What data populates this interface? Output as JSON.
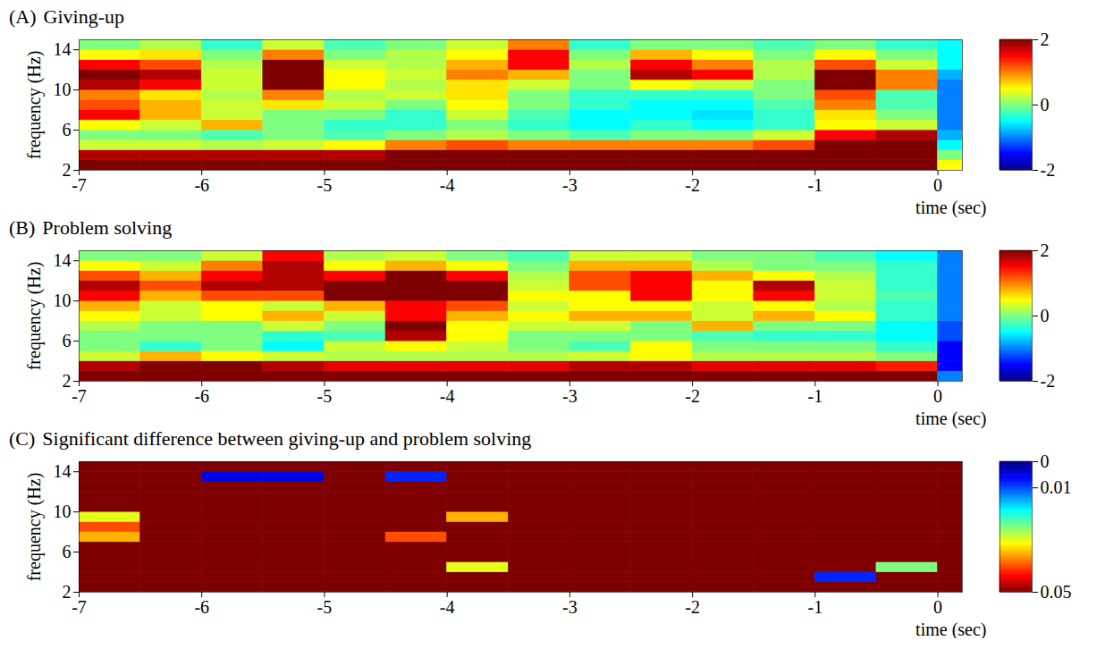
{
  "chart_data": [
    {
      "type": "heatmap",
      "label": "(A)",
      "title": "Giving-up",
      "x_label": "time (sec)",
      "y_label": "frequency (Hz)",
      "xlim": [
        -7,
        0.2
      ],
      "xticks": [
        -7,
        -6,
        -5,
        -4,
        -3,
        -2,
        -1,
        0
      ],
      "ylim": [
        2,
        15
      ],
      "yticks": [
        2,
        6,
        10,
        14
      ],
      "time_bins": [
        -7,
        -6.5,
        -6,
        -5.5,
        -5,
        -4.5,
        -4,
        -3.5,
        -3,
        -2.5,
        -2,
        -1.5,
        -1,
        -0.5,
        0,
        0.2
      ],
      "frequency_bins": [
        2,
        3,
        4,
        5,
        6,
        7,
        8,
        9,
        10,
        11,
        12,
        13,
        14,
        15
      ],
      "cells": [
        [
          2,
          2,
          2,
          2,
          2,
          2,
          2,
          2,
          2,
          2,
          2,
          2,
          2,
          2,
          0.5
        ],
        [
          1.8,
          1.8,
          1.8,
          1.8,
          1.8,
          2,
          2,
          2,
          2,
          2,
          2,
          2,
          2,
          2,
          0
        ],
        [
          0.3,
          0.3,
          0.2,
          0.3,
          0.5,
          1,
          1.2,
          1,
          1,
          1,
          1,
          1.2,
          2,
          2,
          -0.5
        ],
        [
          0,
          0,
          -0.2,
          0,
          -0.2,
          0,
          0.2,
          0,
          -0.2,
          0,
          0,
          0.3,
          1.5,
          1.8,
          -0.8
        ],
        [
          0.5,
          0.3,
          0.8,
          0,
          -0.3,
          -0.3,
          0,
          -0.3,
          -0.5,
          -0.3,
          -0.5,
          -0.3,
          0.5,
          0.3,
          -1
        ],
        [
          1.5,
          0.8,
          0.3,
          0,
          0,
          -0.3,
          0.3,
          -0.2,
          -0.5,
          -0.5,
          -0.6,
          -0.3,
          0.6,
          0,
          -1
        ],
        [
          1.2,
          0.8,
          0.3,
          0.6,
          0.3,
          0,
          0.5,
          0,
          -0.3,
          -0.5,
          -0.5,
          -0.2,
          1,
          -0.2,
          -1
        ],
        [
          1,
          0.6,
          0.2,
          1,
          0.2,
          0.3,
          0.6,
          0,
          -0.3,
          -0.3,
          -0.3,
          0,
          1.2,
          -0.2,
          -1
        ],
        [
          1.8,
          1.5,
          0.3,
          2,
          0.5,
          0.2,
          0.6,
          0.3,
          0,
          0.5,
          0.3,
          0,
          2,
          1,
          -1
        ],
        [
          2,
          1.8,
          0.3,
          2,
          0.5,
          0.3,
          1,
          0.8,
          0,
          1.8,
          1.5,
          0.2,
          2,
          1,
          -0.8
        ],
        [
          1.5,
          1.2,
          0.2,
          2,
          0.3,
          0.2,
          0.8,
          1.5,
          0.2,
          1.5,
          1,
          0.2,
          1.2,
          0.3,
          -0.5
        ],
        [
          0.5,
          0.6,
          0,
          1,
          0,
          0.2,
          0.5,
          1.5,
          0,
          0.8,
          0.5,
          0,
          0.5,
          0,
          -0.5
        ],
        [
          0,
          0.2,
          -0.3,
          0.3,
          -0.2,
          0,
          0.3,
          1,
          -0.3,
          0,
          0,
          -0.2,
          0,
          -0.3,
          -0.5
        ]
      ],
      "colorbar": {
        "range": [
          -2,
          2
        ],
        "ticks": [
          -2,
          0,
          2
        ]
      }
    },
    {
      "type": "heatmap",
      "label": "(B)",
      "title": "Problem solving",
      "x_label": "time (sec)",
      "y_label": "frequency (Hz)",
      "xlim": [
        -7,
        0.2
      ],
      "xticks": [
        -7,
        -6,
        -5,
        -4,
        -3,
        -2,
        -1,
        0
      ],
      "ylim": [
        2,
        15
      ],
      "yticks": [
        2,
        6,
        10,
        14
      ],
      "time_bins": [
        -7,
        -6.5,
        -6,
        -5.5,
        -5,
        -4.5,
        -4,
        -3.5,
        -3,
        -2.5,
        -2,
        -1.5,
        -1,
        -0.5,
        0,
        0.2
      ],
      "frequency_bins": [
        2,
        3,
        4,
        5,
        6,
        7,
        8,
        9,
        10,
        11,
        12,
        13,
        14,
        15
      ],
      "cells": [
        [
          2,
          2,
          2,
          2,
          2,
          2,
          2,
          2,
          2,
          2,
          2,
          2,
          2,
          2,
          -1
        ],
        [
          1.8,
          2,
          2,
          1.8,
          1.6,
          1.6,
          1.6,
          1.6,
          1.8,
          1.8,
          1.6,
          1.6,
          1.6,
          1.4,
          -1.5
        ],
        [
          0.3,
          0.8,
          0.5,
          0.3,
          0.2,
          0.2,
          0.2,
          0.2,
          0.3,
          0.5,
          0.2,
          0.2,
          0.2,
          0,
          -1.5
        ],
        [
          0,
          -0.3,
          0,
          -0.5,
          0.3,
          0.5,
          0.3,
          0,
          -0.2,
          0.5,
          0,
          0,
          0,
          -0.3,
          -1.5
        ],
        [
          0,
          0,
          0,
          -0.3,
          -0.2,
          1.8,
          0.5,
          0,
          0,
          0,
          -0.2,
          -0.3,
          -0.3,
          -0.5,
          -1.2
        ],
        [
          0.2,
          0,
          0,
          0.3,
          0,
          2,
          0.5,
          0.3,
          0.3,
          0,
          0.8,
          0,
          0,
          -0.5,
          -1.2
        ],
        [
          0.5,
          0.3,
          0.5,
          0.8,
          0.3,
          1.5,
          0.8,
          0.5,
          0.8,
          0.8,
          0.3,
          0.8,
          0.5,
          -0.3,
          -1
        ],
        [
          0.8,
          0.3,
          0.5,
          0.3,
          0.8,
          1.5,
          1.2,
          0.3,
          0.5,
          0.5,
          0.3,
          0.5,
          0.2,
          -0.3,
          -1
        ],
        [
          1.5,
          0.8,
          1.2,
          1.2,
          2,
          2,
          2,
          0.5,
          0.5,
          1.5,
          0.5,
          1.5,
          0.3,
          -0.2,
          -1
        ],
        [
          1.8,
          1.2,
          1.8,
          1.8,
          2,
          2,
          2,
          0.3,
          1.2,
          1.5,
          0.5,
          1.8,
          0.3,
          -0.3,
          -1
        ],
        [
          1.2,
          0.8,
          1.5,
          1.8,
          1.5,
          2,
          1.5,
          0.2,
          1.2,
          1.5,
          0.8,
          0.5,
          0.2,
          -0.3,
          -1
        ],
        [
          0.5,
          0.3,
          1,
          1.8,
          0.5,
          0.8,
          0.5,
          0,
          0.8,
          0.8,
          0.2,
          0,
          0,
          -0.3,
          -1
        ],
        [
          0,
          0,
          0.3,
          1.5,
          0.2,
          0.3,
          0,
          -0.2,
          0.3,
          0.3,
          0,
          0,
          -0.2,
          -0.5,
          -1
        ]
      ],
      "colorbar": {
        "range": [
          -2,
          2
        ],
        "ticks": [
          -2,
          0,
          2
        ]
      }
    },
    {
      "type": "heatmap",
      "label": "(C)",
      "title": "Significant difference between giving-up and problem solving",
      "x_label": "time (sec)",
      "y_label": "frequency (Hz)",
      "xlim": [
        -7,
        0.2
      ],
      "xticks": [
        -7,
        -6,
        -5,
        -4,
        -3,
        -2,
        -1,
        0
      ],
      "ylim": [
        2,
        15
      ],
      "yticks": [
        2,
        6,
        10,
        14
      ],
      "time_bins": [
        -7,
        -6.5,
        -6,
        -5.5,
        -5,
        -4.5,
        -4,
        -3.5,
        -3,
        -2.5,
        -2,
        -1.5,
        -1,
        -0.5,
        0,
        0.2
      ],
      "frequency_bins": [
        2,
        3,
        4,
        5,
        6,
        7,
        8,
        9,
        10,
        11,
        12,
        13,
        14,
        15
      ],
      "cells": [
        [
          0.05,
          0.05,
          0.05,
          0.05,
          0.05,
          0.05,
          0.05,
          0.05,
          0.05,
          0.05,
          0.05,
          0.05,
          0.05,
          0.05,
          0.05
        ],
        [
          0.05,
          0.05,
          0.05,
          0.05,
          0.05,
          0.05,
          0.05,
          0.05,
          0.05,
          0.05,
          0.05,
          0.05,
          0.008,
          0.05,
          0.05
        ],
        [
          0.05,
          0.05,
          0.05,
          0.05,
          0.05,
          0.05,
          0.03,
          0.05,
          0.05,
          0.05,
          0.05,
          0.05,
          0.05,
          0.025,
          0.05
        ],
        [
          0.05,
          0.05,
          0.05,
          0.05,
          0.05,
          0.05,
          0.05,
          0.05,
          0.05,
          0.05,
          0.05,
          0.05,
          0.05,
          0.05,
          0.05
        ],
        [
          0.05,
          0.05,
          0.05,
          0.05,
          0.05,
          0.05,
          0.05,
          0.05,
          0.05,
          0.05,
          0.05,
          0.05,
          0.05,
          0.05,
          0.05
        ],
        [
          0.035,
          0.05,
          0.05,
          0.05,
          0.05,
          0.04,
          0.05,
          0.05,
          0.05,
          0.05,
          0.05,
          0.05,
          0.05,
          0.05,
          0.05
        ],
        [
          0.04,
          0.05,
          0.05,
          0.05,
          0.05,
          0.05,
          0.05,
          0.05,
          0.05,
          0.05,
          0.05,
          0.05,
          0.05,
          0.05,
          0.05
        ],
        [
          0.03,
          0.05,
          0.05,
          0.05,
          0.05,
          0.05,
          0.035,
          0.05,
          0.05,
          0.05,
          0.05,
          0.05,
          0.05,
          0.05,
          0.05
        ],
        [
          0.05,
          0.05,
          0.05,
          0.05,
          0.05,
          0.05,
          0.05,
          0.05,
          0.05,
          0.05,
          0.05,
          0.05,
          0.05,
          0.05,
          0.05
        ],
        [
          0.05,
          0.05,
          0.05,
          0.05,
          0.05,
          0.05,
          0.05,
          0.05,
          0.05,
          0.05,
          0.05,
          0.05,
          0.05,
          0.05,
          0.05
        ],
        [
          0.05,
          0.05,
          0.05,
          0.05,
          0.05,
          0.05,
          0.05,
          0.05,
          0.05,
          0.05,
          0.05,
          0.05,
          0.05,
          0.05,
          0.05
        ],
        [
          0.05,
          0.05,
          0.005,
          0.005,
          0.05,
          0.008,
          0.05,
          0.05,
          0.05,
          0.05,
          0.05,
          0.05,
          0.05,
          0.05,
          0.05
        ],
        [
          0.05,
          0.05,
          0.05,
          0.05,
          0.05,
          0.05,
          0.05,
          0.05,
          0.05,
          0.05,
          0.05,
          0.05,
          0.05,
          0.05,
          0.05
        ]
      ],
      "colorbar": {
        "range": [
          0.05,
          0
        ],
        "ticks": [
          0,
          0.01,
          0.05
        ]
      }
    }
  ]
}
